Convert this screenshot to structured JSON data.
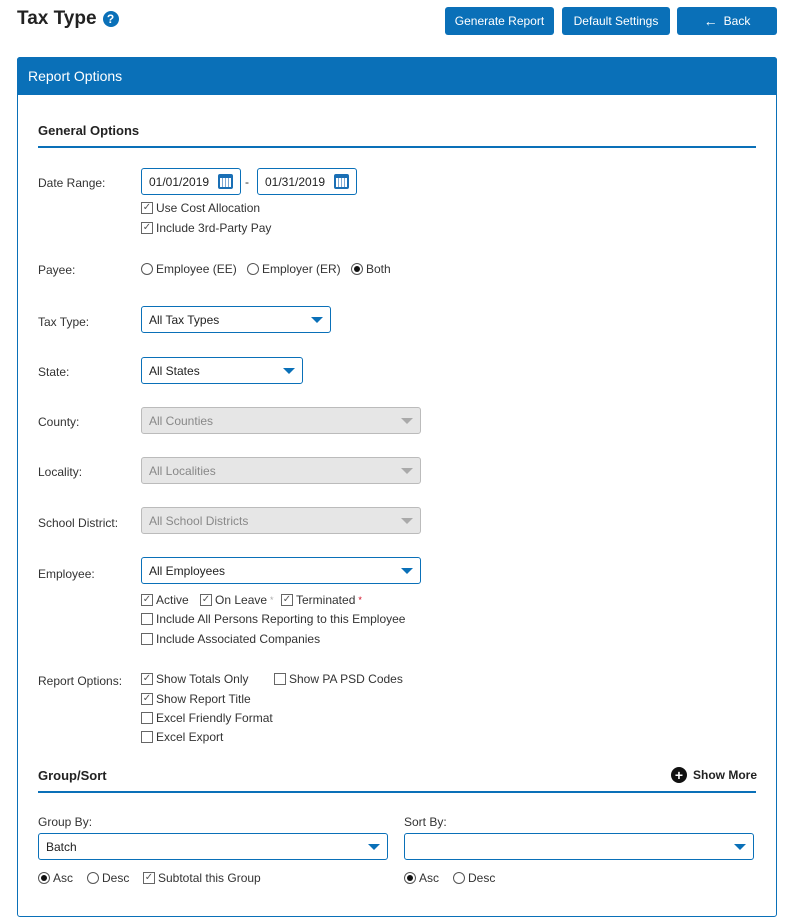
{
  "header": {
    "title": "Tax Type",
    "help_icon": "?",
    "generate": "Generate Report",
    "defaults": "Default Settings",
    "back": "Back",
    "back_icon": "←"
  },
  "panel": {
    "title": "Report Options"
  },
  "general": {
    "heading": "General Options",
    "date_label": "Date Range:",
    "date_from": "01/01/2019",
    "date_to": "01/31/2019",
    "date_sep": "-",
    "use_cost": "Use Cost Allocation",
    "third_party": "Include 3rd-Party Pay",
    "payee_label": "Payee:",
    "payee_ee": "Employee (EE)",
    "payee_er": "Employer (ER)",
    "payee_both": "Both",
    "payee_selected": "Both",
    "taxtype_label": "Tax Type:",
    "taxtype_value": "All Tax Types",
    "state_label": "State:",
    "state_value": "All States",
    "county_label": "County:",
    "county_value": "All Counties",
    "locality_label": "Locality:",
    "locality_value": "All Localities",
    "school_label": "School District:",
    "school_value": "All School Districts",
    "employee_label": "Employee:",
    "employee_value": "All Employees",
    "active": "Active",
    "onleave": "On Leave",
    "terminated": "Terminated",
    "asterisk": "*",
    "include_reporting": "Include All Persons Reporting to this Employee",
    "include_assoc": "Include Associated Companies",
    "ro_label": "Report Options:",
    "totals_only": "Show Totals Only",
    "pa_psd": "Show PA PSD Codes",
    "report_title": "Show Report Title",
    "excel_friendly": "Excel Friendly Format",
    "excel_export": "Excel Export"
  },
  "groupsort": {
    "heading": "Group/Sort",
    "show_more": "Show More",
    "group_label": "Group By:",
    "group_value": "Batch",
    "sort_label": "Sort By:",
    "sort_value": "",
    "asc": "Asc",
    "desc": "Desc",
    "subtotal": "Subtotal this Group"
  },
  "colors": {
    "accent": "#0a70b8",
    "required": "#d0021b"
  }
}
